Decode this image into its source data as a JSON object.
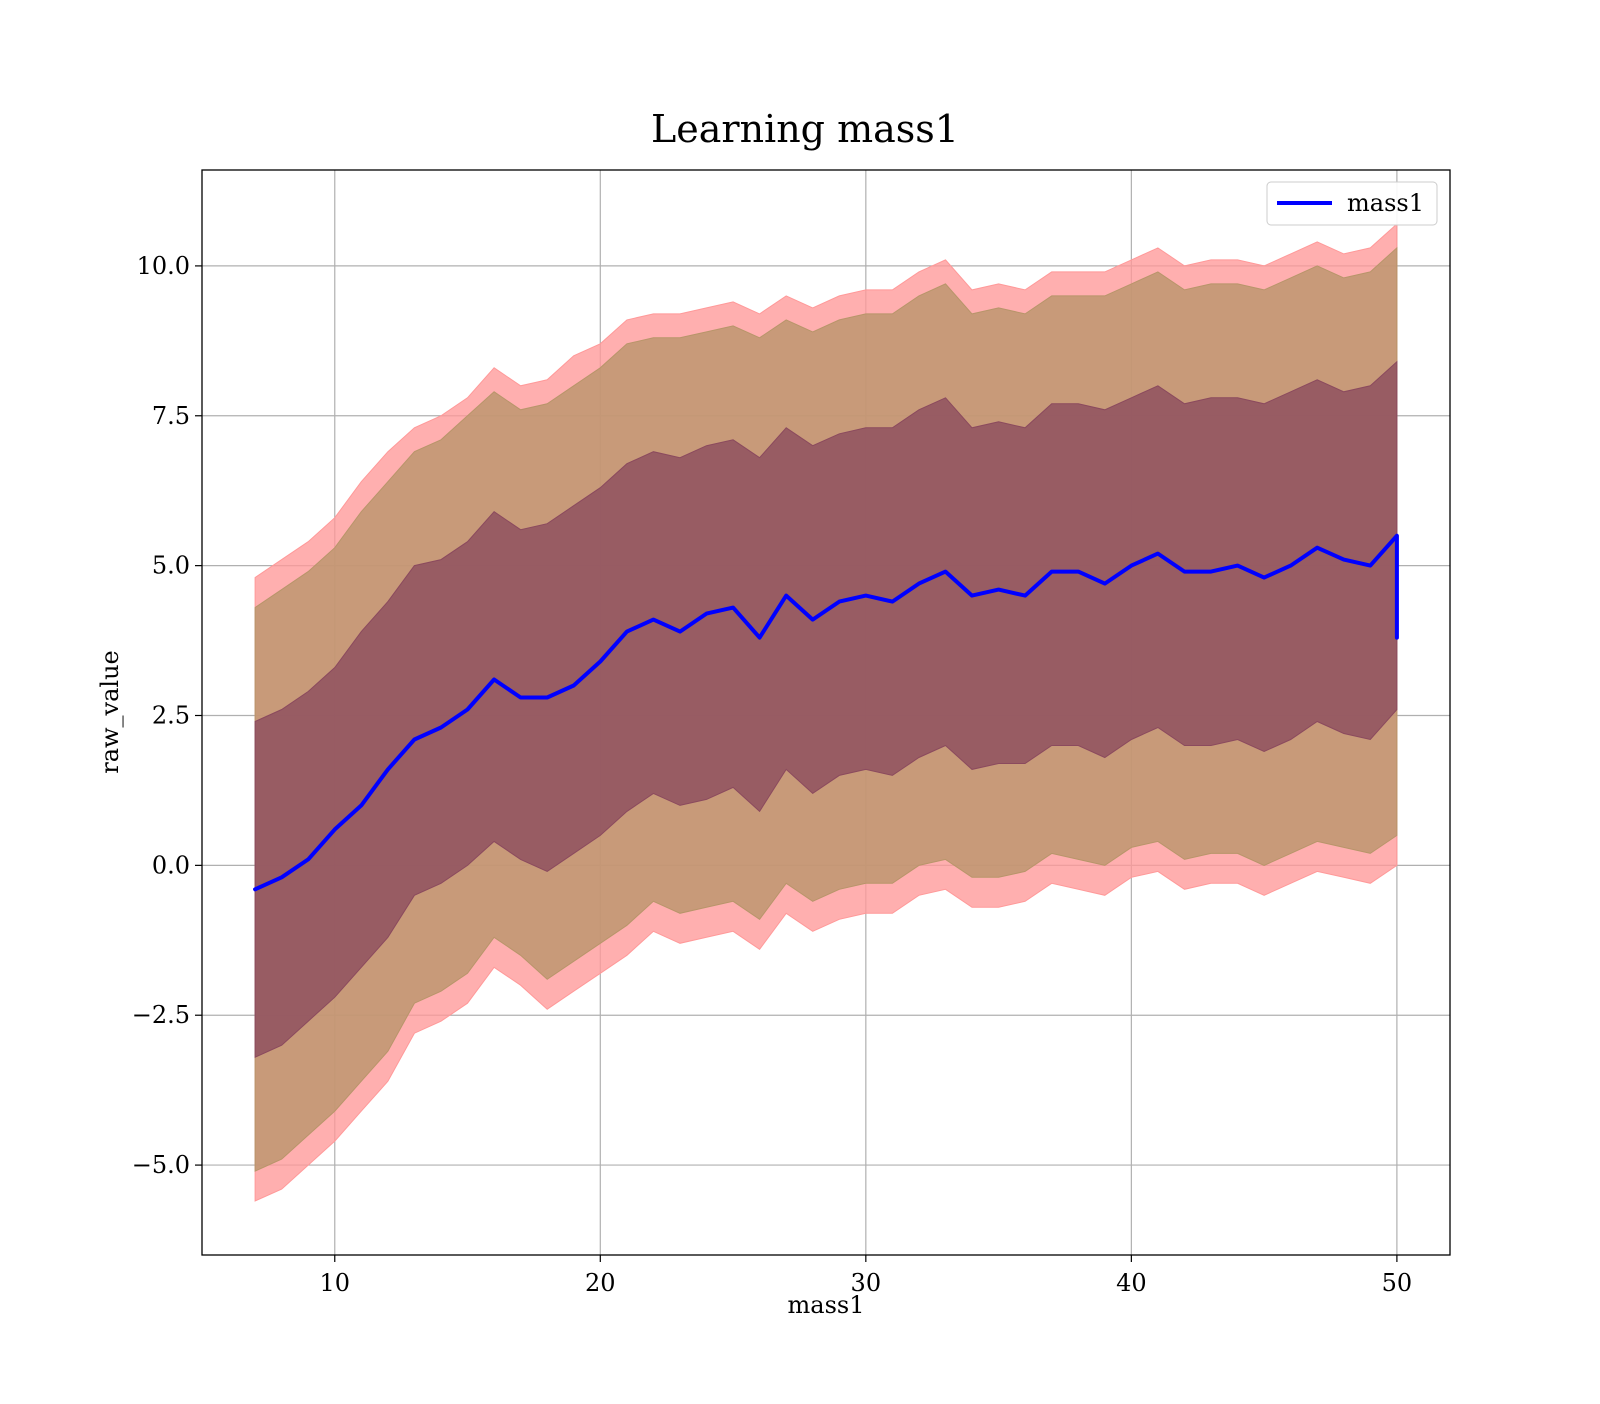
{
  "chart_data": {
    "type": "line",
    "title": "Learning mass1",
    "xlabel": "mass1",
    "ylabel": "raw_value",
    "xlim": [
      5,
      52
    ],
    "ylim": [
      -6.5,
      11.6
    ],
    "xticks": [
      {
        "value": 10,
        "label": "10"
      },
      {
        "value": 20,
        "label": "20"
      },
      {
        "value": 30,
        "label": "30"
      },
      {
        "value": 40,
        "label": "40"
      },
      {
        "value": 50,
        "label": "50"
      }
    ],
    "yticks": [
      {
        "value": -5.0,
        "label": "−5.0"
      },
      {
        "value": -2.5,
        "label": "−2.5"
      },
      {
        "value": 0.0,
        "label": "0.0"
      },
      {
        "value": 2.5,
        "label": "2.5"
      },
      {
        "value": 5.0,
        "label": "5.0"
      },
      {
        "value": 7.5,
        "label": "7.5"
      },
      {
        "value": 10.0,
        "label": "10.0"
      }
    ],
    "grid": true,
    "legend": {
      "position": "top-right",
      "entries": [
        "mass1"
      ]
    },
    "series": [
      {
        "name": "mass1",
        "color": "#0000ff",
        "x": [
          7,
          8,
          9,
          10,
          11,
          12,
          13,
          14,
          15,
          16,
          17,
          18,
          19,
          20,
          21,
          22,
          23,
          24,
          25,
          26,
          27,
          28,
          29,
          30,
          31,
          32,
          33,
          34,
          35,
          36,
          37,
          38,
          39,
          40,
          41,
          42,
          43,
          44,
          45,
          46,
          47,
          48,
          49,
          50,
          50
        ],
        "y": [
          -0.4,
          -0.2,
          0.1,
          0.6,
          1.0,
          1.6,
          2.1,
          2.3,
          2.6,
          3.1,
          2.8,
          2.8,
          3.0,
          3.4,
          3.9,
          4.1,
          3.9,
          4.2,
          4.3,
          3.8,
          4.5,
          4.1,
          4.4,
          4.5,
          4.4,
          4.7,
          4.9,
          4.5,
          4.6,
          4.5,
          4.9,
          4.9,
          4.7,
          5.0,
          5.2,
          4.9,
          4.9,
          5.0,
          4.8,
          5.0,
          5.3,
          5.1,
          5.0,
          5.5,
          3.8
        ]
      }
    ],
    "bands": [
      {
        "color": "#ff9999",
        "x": [
          7,
          8,
          9,
          10,
          11,
          12,
          13,
          14,
          15,
          16,
          17,
          18,
          19,
          20,
          21,
          22,
          23,
          24,
          25,
          26,
          27,
          28,
          29,
          30,
          31,
          32,
          33,
          34,
          35,
          36,
          37,
          38,
          39,
          40,
          41,
          42,
          43,
          44,
          45,
          46,
          47,
          48,
          49,
          50
        ],
        "upper": [
          4.8,
          5.1,
          5.4,
          5.8,
          6.4,
          6.9,
          7.3,
          7.5,
          7.8,
          8.3,
          8.0,
          8.1,
          8.5,
          8.7,
          9.1,
          9.2,
          9.2,
          9.3,
          9.4,
          9.2,
          9.5,
          9.3,
          9.5,
          9.6,
          9.6,
          9.9,
          10.1,
          9.6,
          9.7,
          9.6,
          9.9,
          9.9,
          9.9,
          10.1,
          10.3,
          10.0,
          10.1,
          10.1,
          10.0,
          10.2,
          10.4,
          10.2,
          10.3,
          10.7
        ],
        "lower": [
          -5.6,
          -5.4,
          -5.0,
          -4.6,
          -4.1,
          -3.6,
          -2.8,
          -2.6,
          -2.3,
          -1.7,
          -2.0,
          -2.4,
          -2.1,
          -1.8,
          -1.5,
          -1.1,
          -1.3,
          -1.2,
          -1.1,
          -1.4,
          -0.8,
          -1.1,
          -0.9,
          -0.8,
          -0.8,
          -0.5,
          -0.4,
          -0.7,
          -0.7,
          -0.6,
          -0.3,
          -0.4,
          -0.5,
          -0.2,
          -0.1,
          -0.4,
          -0.3,
          -0.3,
          -0.5,
          -0.3,
          -0.1,
          -0.2,
          -0.3,
          0.0
        ]
      },
      {
        "color": "#b8956a",
        "x": [
          7,
          8,
          9,
          10,
          11,
          12,
          13,
          14,
          15,
          16,
          17,
          18,
          19,
          20,
          21,
          22,
          23,
          24,
          25,
          26,
          27,
          28,
          29,
          30,
          31,
          32,
          33,
          34,
          35,
          36,
          37,
          38,
          39,
          40,
          41,
          42,
          43,
          44,
          45,
          46,
          47,
          48,
          49,
          50
        ],
        "upper": [
          4.3,
          4.6,
          4.9,
          5.3,
          5.9,
          6.4,
          6.9,
          7.1,
          7.5,
          7.9,
          7.6,
          7.7,
          8.0,
          8.3,
          8.7,
          8.8,
          8.8,
          8.9,
          9.0,
          8.8,
          9.1,
          8.9,
          9.1,
          9.2,
          9.2,
          9.5,
          9.7,
          9.2,
          9.3,
          9.2,
          9.5,
          9.5,
          9.5,
          9.7,
          9.9,
          9.6,
          9.7,
          9.7,
          9.6,
          9.8,
          10.0,
          9.8,
          9.9,
          10.3
        ],
        "lower": [
          -5.1,
          -4.9,
          -4.5,
          -4.1,
          -3.6,
          -3.1,
          -2.3,
          -2.1,
          -1.8,
          -1.2,
          -1.5,
          -1.9,
          -1.6,
          -1.3,
          -1.0,
          -0.6,
          -0.8,
          -0.7,
          -0.6,
          -0.9,
          -0.3,
          -0.6,
          -0.4,
          -0.3,
          -0.3,
          0.0,
          0.1,
          -0.2,
          -0.2,
          -0.1,
          0.2,
          0.1,
          0.0,
          0.3,
          0.4,
          0.1,
          0.2,
          0.2,
          0.0,
          0.2,
          0.4,
          0.3,
          0.2,
          0.5
        ]
      },
      {
        "color": "#8b4a5e",
        "x": [
          7,
          8,
          9,
          10,
          11,
          12,
          13,
          14,
          15,
          16,
          17,
          18,
          19,
          20,
          21,
          22,
          23,
          24,
          25,
          26,
          27,
          28,
          29,
          30,
          31,
          32,
          33,
          34,
          35,
          36,
          37,
          38,
          39,
          40,
          41,
          42,
          43,
          44,
          45,
          46,
          47,
          48,
          49,
          50
        ],
        "upper": [
          2.4,
          2.6,
          2.9,
          3.3,
          3.9,
          4.4,
          5.0,
          5.1,
          5.4,
          5.9,
          5.6,
          5.7,
          6.0,
          6.3,
          6.7,
          6.9,
          6.8,
          7.0,
          7.1,
          6.8,
          7.3,
          7.0,
          7.2,
          7.3,
          7.3,
          7.6,
          7.8,
          7.3,
          7.4,
          7.3,
          7.7,
          7.7,
          7.6,
          7.8,
          8.0,
          7.7,
          7.8,
          7.8,
          7.7,
          7.9,
          8.1,
          7.9,
          8.0,
          8.4
        ],
        "lower": [
          -3.2,
          -3.0,
          -2.6,
          -2.2,
          -1.7,
          -1.2,
          -0.5,
          -0.3,
          0.0,
          0.4,
          0.1,
          -0.1,
          0.2,
          0.5,
          0.9,
          1.2,
          1.0,
          1.1,
          1.3,
          0.9,
          1.6,
          1.2,
          1.5,
          1.6,
          1.5,
          1.8,
          2.0,
          1.6,
          1.7,
          1.7,
          2.0,
          2.0,
          1.8,
          2.1,
          2.3,
          2.0,
          2.0,
          2.1,
          1.9,
          2.1,
          2.4,
          2.2,
          2.1,
          2.6
        ]
      }
    ]
  }
}
